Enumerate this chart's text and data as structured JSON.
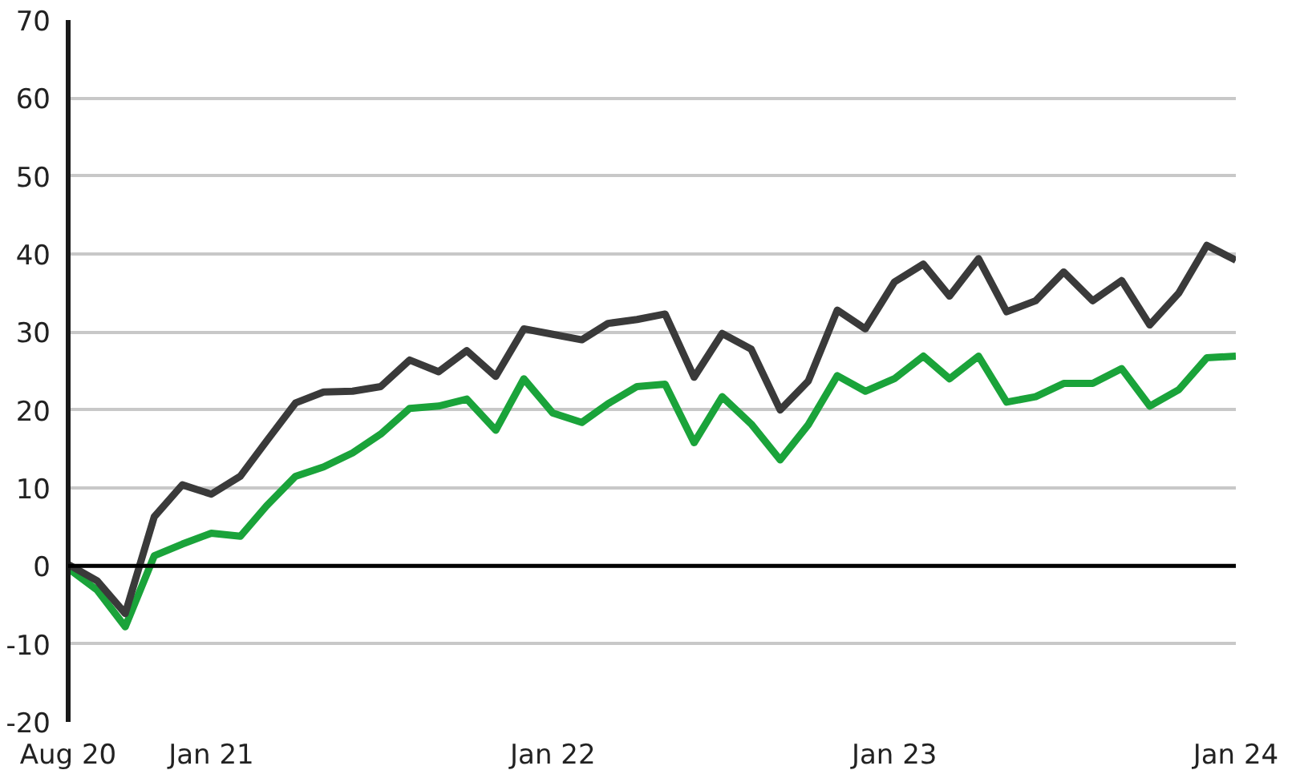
{
  "chart_data": {
    "type": "line",
    "x": [
      "2020-08",
      "2020-09",
      "2020-10",
      "2020-11",
      "2020-12",
      "2021-01",
      "2021-02",
      "2021-03",
      "2021-04",
      "2021-05",
      "2021-06",
      "2021-07",
      "2021-08",
      "2021-09",
      "2021-10",
      "2021-11",
      "2021-12",
      "2022-01",
      "2022-02",
      "2022-03",
      "2022-04",
      "2022-05",
      "2022-06",
      "2022-07",
      "2022-08",
      "2022-09",
      "2022-10",
      "2022-11",
      "2022-12",
      "2023-01",
      "2023-02",
      "2023-03",
      "2023-04",
      "2023-05",
      "2023-06",
      "2023-07",
      "2023-08",
      "2023-09",
      "2023-10",
      "2023-11",
      "2023-12",
      "2024-01"
    ],
    "series": [
      {
        "color": "#1aa33a",
        "values": [
          -0.3,
          -3.1,
          -7.8,
          1.3,
          2.8,
          4.2,
          3.8,
          7.7,
          11.5,
          12.7,
          14.5,
          16.9,
          20.2,
          20.5,
          21.4,
          17.4,
          24.0,
          19.6,
          18.4,
          20.8,
          23.0,
          23.3,
          15.8,
          21.7,
          18.2,
          13.6,
          18.1,
          24.4,
          22.4,
          24.0,
          26.9,
          24.0,
          26.9,
          21.0,
          21.7,
          23.4,
          23.4,
          25.3,
          20.5,
          22.6,
          26.7,
          26.9
        ]
      },
      {
        "color": "#3a3a3a",
        "values": [
          0.2,
          -1.9,
          -6.1,
          6.3,
          10.4,
          9.2,
          11.5,
          16.0,
          20.9,
          22.3,
          22.4,
          23.0,
          26.4,
          24.9,
          27.6,
          24.3,
          30.4,
          29.7,
          29.0,
          31.1,
          31.6,
          32.3,
          24.2,
          29.8,
          27.8,
          20.0,
          23.7,
          32.8,
          30.4,
          36.4,
          38.7,
          34.6,
          39.4,
          32.6,
          34.0,
          37.7,
          34.0,
          36.6,
          30.9,
          35.0,
          41.1,
          39.2
        ]
      }
    ],
    "xlim": [
      "2020-08",
      "2024-01"
    ],
    "xticks": [
      {
        "value": "2020-08",
        "label": "Aug 20"
      },
      {
        "value": "2021-01",
        "label": "Jan 21"
      },
      {
        "value": "2022-01",
        "label": "Jan 22"
      },
      {
        "value": "2023-01",
        "label": "Jan 23"
      },
      {
        "value": "2024-01",
        "label": "Jan 24"
      }
    ],
    "ylim": [
      -20,
      70
    ],
    "yticks": [
      -20,
      -10,
      0,
      10,
      20,
      30,
      40,
      50,
      60,
      70
    ],
    "ref_lines": [
      {
        "axis": "y",
        "value": 0,
        "color": "#000000"
      }
    ],
    "grid": "y",
    "marker": "none",
    "line_style": "solid"
  }
}
